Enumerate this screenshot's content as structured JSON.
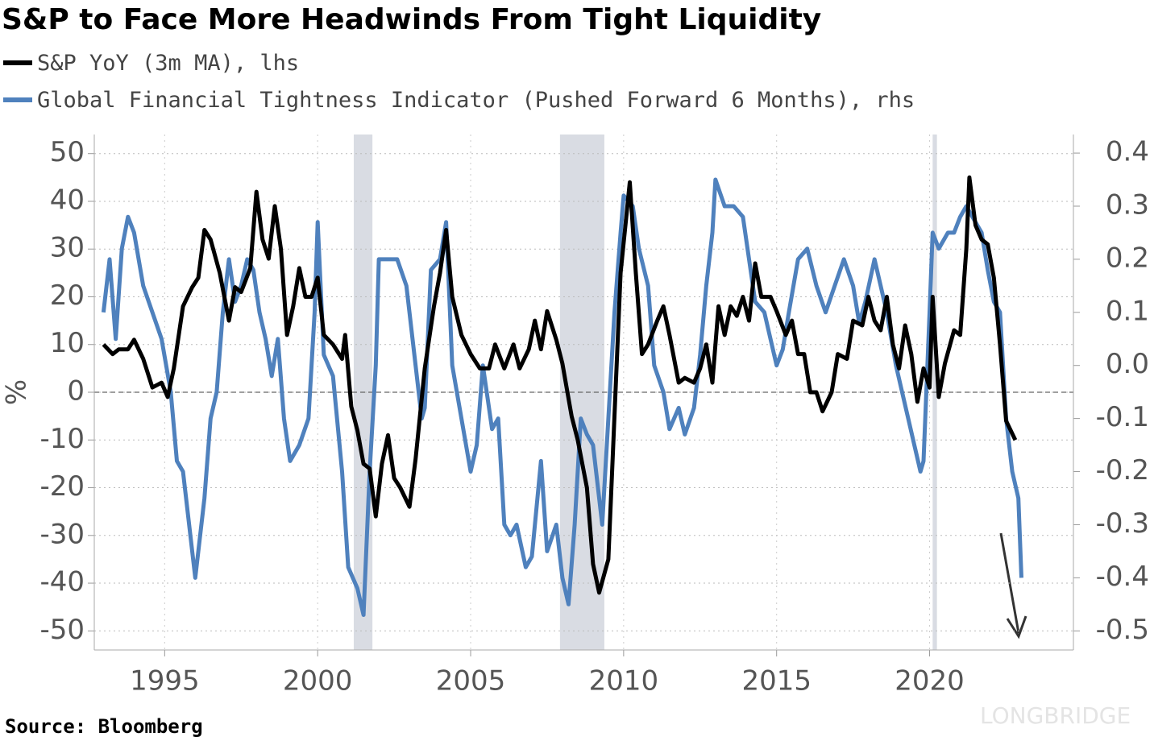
{
  "chart_data": {
    "type": "line",
    "title": "S&P to Face More Headwinds From Tight Liquidity",
    "ylabel": "%",
    "source": "Source: Bloomberg",
    "watermark": "LONGBRIDGE",
    "xlim": [
      1992.7,
      2024.7
    ],
    "xticks": [
      1995,
      2000,
      2005,
      2010,
      2015,
      2020
    ],
    "ylim": [
      -54,
      54
    ],
    "yticks": [
      50,
      40,
      30,
      20,
      10,
      0,
      -10,
      -20,
      -30,
      -40,
      -50
    ],
    "y2lim": [
      -0.536,
      0.435
    ],
    "y2ticks": [
      0.4,
      0.3,
      0.2,
      0.1,
      {
        "value": 0,
        "label": "0.0"
      },
      -0.1,
      -0.2,
      -0.3,
      -0.4,
      -0.5
    ],
    "grid": true,
    "shaded_regions": [
      [
        2001.18,
        2001.79
      ],
      [
        2007.92,
        2009.37
      ],
      [
        2020.1,
        2020.24
      ]
    ],
    "series": [
      {
        "name": "S&P YoY (3m MA), lhs",
        "color": "#000000",
        "axis": "y",
        "x": [
          1993.0,
          1993.3,
          1993.5,
          1993.8,
          1994.0,
          1994.3,
          1994.6,
          1994.9,
          1995.1,
          1995.3,
          1995.6,
          1995.9,
          1996.1,
          1996.3,
          1996.5,
          1996.8,
          1997.1,
          1997.3,
          1997.5,
          1997.8,
          1998.0,
          1998.2,
          1998.4,
          1998.6,
          1998.8,
          1999.0,
          1999.2,
          1999.4,
          1999.6,
          1999.8,
          2000.0,
          2000.2,
          2000.5,
          2000.8,
          2000.9,
          2001.1,
          2001.3,
          2001.5,
          2001.7,
          2001.9,
          2002.1,
          2002.3,
          2002.5,
          2002.7,
          2003.0,
          2003.2,
          2003.5,
          2003.8,
          2004.0,
          2004.2,
          2004.4,
          2004.7,
          2005.0,
          2005.3,
          2005.6,
          2005.8,
          2006.1,
          2006.4,
          2006.6,
          2006.9,
          2007.1,
          2007.3,
          2007.5,
          2007.8,
          2008.0,
          2008.3,
          2008.5,
          2008.8,
          2009.0,
          2009.2,
          2009.5,
          2009.7,
          2009.9,
          2010.2,
          2010.4,
          2010.6,
          2010.8,
          2011.1,
          2011.3,
          2011.5,
          2011.8,
          2012.0,
          2012.3,
          2012.5,
          2012.7,
          2012.9,
          2013.1,
          2013.3,
          2013.5,
          2013.7,
          2013.9,
          2014.1,
          2014.3,
          2014.5,
          2014.8,
          2015.0,
          2015.3,
          2015.5,
          2015.7,
          2015.9,
          2016.1,
          2016.3,
          2016.5,
          2016.8,
          2017.0,
          2017.3,
          2017.5,
          2017.8,
          2018.0,
          2018.2,
          2018.4,
          2018.6,
          2018.8,
          2019.0,
          2019.2,
          2019.4,
          2019.6,
          2019.8,
          2020.0,
          2020.1,
          2020.3,
          2020.5,
          2020.8,
          2021.0,
          2021.2,
          2021.3,
          2021.5,
          2021.7,
          2021.9,
          2022.1,
          2022.3,
          2022.5,
          2022.8
        ],
        "values": [
          10,
          8,
          9,
          9,
          11,
          7,
          1,
          2,
          -1,
          5,
          18,
          22,
          24,
          34,
          32,
          25,
          15,
          22,
          21,
          26,
          42,
          32,
          28,
          39,
          30,
          12,
          18,
          26,
          20,
          20,
          24,
          12,
          10,
          7,
          12,
          -3,
          -8,
          -15,
          -16,
          -26,
          -15,
          -9,
          -18,
          -20,
          -24,
          -14,
          5,
          18,
          25,
          34,
          20,
          12,
          8,
          5,
          5,
          10,
          5,
          10,
          5,
          9,
          15,
          9,
          17,
          11,
          6,
          -5,
          -10,
          -20,
          -36,
          -42,
          -35,
          -5,
          25,
          44,
          25,
          8,
          10,
          15,
          18,
          12,
          2,
          3,
          2,
          5,
          10,
          2,
          18,
          12,
          18,
          16,
          20,
          15,
          27,
          20,
          20,
          17,
          12,
          15,
          8,
          8,
          0,
          0,
          -4,
          0,
          8,
          7,
          15,
          14,
          20,
          15,
          13,
          20,
          10,
          5,
          14,
          8,
          -2,
          5,
          1,
          20,
          -1,
          6,
          13,
          12,
          30,
          45,
          35,
          32,
          31,
          24,
          10,
          -6,
          -10
        ]
      },
      {
        "name": "Global Financial Tightness Indicator (Pushed Forward 6 Months), rhs",
        "color": "#4f81bd",
        "axis": "y2",
        "x": [
          1993.0,
          1993.2,
          1993.4,
          1993.6,
          1993.8,
          1994.0,
          1994.3,
          1994.6,
          1994.9,
          1995.2,
          1995.4,
          1995.6,
          1995.9,
          1996.0,
          1996.3,
          1996.5,
          1996.7,
          1996.9,
          1997.1,
          1997.3,
          1997.5,
          1997.7,
          1997.9,
          1998.1,
          1998.3,
          1998.5,
          1998.7,
          1998.9,
          1999.1,
          1999.4,
          1999.7,
          1999.9,
          2000.0,
          2000.2,
          2000.5,
          2000.8,
          2001.0,
          2001.3,
          2001.5,
          2001.7,
          2001.9,
          2002.0,
          2002.3,
          2002.6,
          2002.9,
          2003.2,
          2003.4,
          2003.5,
          2003.7,
          2004.0,
          2004.2,
          2004.4,
          2004.7,
          2005.0,
          2005.2,
          2005.4,
          2005.7,
          2005.9,
          2006.1,
          2006.3,
          2006.5,
          2006.8,
          2007.0,
          2007.3,
          2007.5,
          2007.8,
          2008.0,
          2008.2,
          2008.4,
          2008.6,
          2008.8,
          2009.0,
          2009.3,
          2009.5,
          2009.7,
          2009.9,
          2010.0,
          2010.3,
          2010.5,
          2010.8,
          2011.0,
          2011.3,
          2011.5,
          2011.8,
          2012.0,
          2012.3,
          2012.5,
          2012.7,
          2012.9,
          2013.0,
          2013.3,
          2013.6,
          2013.9,
          2014.1,
          2014.3,
          2014.6,
          2014.8,
          2015.0,
          2015.2,
          2015.4,
          2015.7,
          2016.0,
          2016.3,
          2016.6,
          2016.9,
          2017.2,
          2017.5,
          2017.7,
          2017.9,
          2018.2,
          2018.4,
          2018.6,
          2018.9,
          2019.1,
          2019.3,
          2019.5,
          2019.7,
          2019.8,
          2020.0,
          2020.1,
          2020.3,
          2020.6,
          2020.8,
          2021.0,
          2021.2,
          2021.4,
          2021.7,
          2021.9,
          2022.1,
          2022.3,
          2022.5,
          2022.7,
          2022.9,
          2023.0
        ],
        "values": [
          0.1,
          0.2,
          0.05,
          0.22,
          0.28,
          0.25,
          0.15,
          0.1,
          0.05,
          -0.05,
          -0.18,
          -0.2,
          -0.35,
          -0.4,
          -0.25,
          -0.1,
          -0.05,
          0.1,
          0.2,
          0.12,
          0.15,
          0.2,
          0.18,
          0.1,
          0.05,
          -0.02,
          0.05,
          -0.1,
          -0.18,
          -0.15,
          -0.1,
          0.1,
          0.27,
          0.02,
          -0.02,
          -0.2,
          -0.38,
          -0.42,
          -0.47,
          -0.2,
          0.0,
          0.2,
          0.2,
          0.2,
          0.15,
          0.0,
          -0.1,
          -0.08,
          0.18,
          0.2,
          0.27,
          0.0,
          -0.1,
          -0.2,
          -0.15,
          0.0,
          -0.12,
          -0.1,
          -0.3,
          -0.32,
          -0.3,
          -0.38,
          -0.36,
          -0.18,
          -0.35,
          -0.3,
          -0.4,
          -0.45,
          -0.3,
          -0.1,
          -0.13,
          -0.15,
          -0.3,
          -0.1,
          0.1,
          0.25,
          0.32,
          0.3,
          0.22,
          0.15,
          0.0,
          -0.05,
          -0.12,
          -0.08,
          -0.13,
          -0.08,
          0.02,
          0.15,
          0.25,
          0.35,
          0.3,
          0.3,
          0.28,
          0.2,
          0.12,
          0.1,
          0.05,
          0.0,
          0.03,
          0.1,
          0.2,
          0.22,
          0.15,
          0.1,
          0.15,
          0.2,
          0.15,
          0.08,
          0.12,
          0.2,
          0.15,
          0.1,
          0.0,
          -0.05,
          -0.1,
          -0.15,
          -0.2,
          -0.18,
          0.1,
          0.25,
          0.22,
          0.25,
          0.25,
          0.28,
          0.3,
          0.28,
          0.25,
          0.18,
          0.12,
          0.1,
          -0.1,
          -0.2,
          -0.25,
          -0.4
        ]
      }
    ]
  }
}
